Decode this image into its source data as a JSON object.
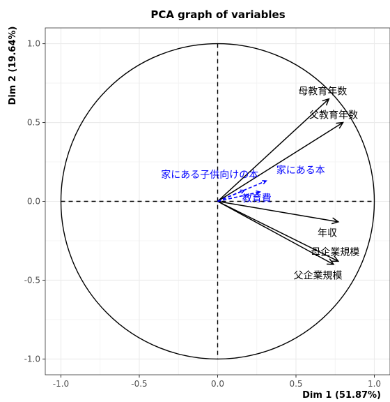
{
  "chart_data": {
    "type": "scatter",
    "title": "PCA graph of variables",
    "xlabel": "Dim 1 (51.87%)",
    "ylabel": "Dim 2 (19.64%)",
    "xlim": [
      -1.1,
      1.1
    ],
    "ylim": [
      -1.1,
      1.1
    ],
    "xticks": [
      -1.0,
      -0.5,
      0.0,
      0.5,
      1.0
    ],
    "yticks": [
      -1.0,
      -0.5,
      0.0,
      0.5,
      1.0
    ],
    "xtick_labels": [
      "-1.0",
      "-0.5",
      "0.0",
      "0.5",
      "1.0"
    ],
    "ytick_labels": [
      "-1.0",
      "-0.5",
      "0.0",
      "0.5",
      "1.0"
    ],
    "grid": true,
    "unit_circle": true,
    "colors": {
      "active": "#000000",
      "supplementary": "#0000ff",
      "grid_minor": "#f2f2f2",
      "grid_major": "#ebebeb",
      "panel_border": "#333333"
    },
    "variables": [
      {
        "name": "母教育年数",
        "x": 0.71,
        "y": 0.65,
        "group": "active",
        "lx": 0.67,
        "ly": 0.7
      },
      {
        "name": "父教育年数",
        "x": 0.8,
        "y": 0.5,
        "group": "active",
        "lx": 0.74,
        "ly": 0.55
      },
      {
        "name": "年収",
        "x": 0.77,
        "y": -0.13,
        "group": "active",
        "lx": 0.7,
        "ly": -0.2
      },
      {
        "name": "母企業規模",
        "x": 0.77,
        "y": -0.38,
        "group": "active",
        "lx": 0.75,
        "ly": -0.32
      },
      {
        "name": "父企業規模",
        "x": 0.74,
        "y": -0.4,
        "group": "active",
        "lx": 0.64,
        "ly": -0.47
      },
      {
        "name": "家にある子供向けの本",
        "x": 0.17,
        "y": 0.07,
        "group": "supplementary",
        "lx": -0.05,
        "ly": 0.17
      },
      {
        "name": "家にある本",
        "x": 0.31,
        "y": 0.13,
        "group": "supplementary",
        "lx": 0.53,
        "ly": 0.2
      },
      {
        "name": "教育費",
        "x": 0.27,
        "y": 0.06,
        "group": "supplementary",
        "lx": 0.25,
        "ly": 0.02
      }
    ]
  }
}
